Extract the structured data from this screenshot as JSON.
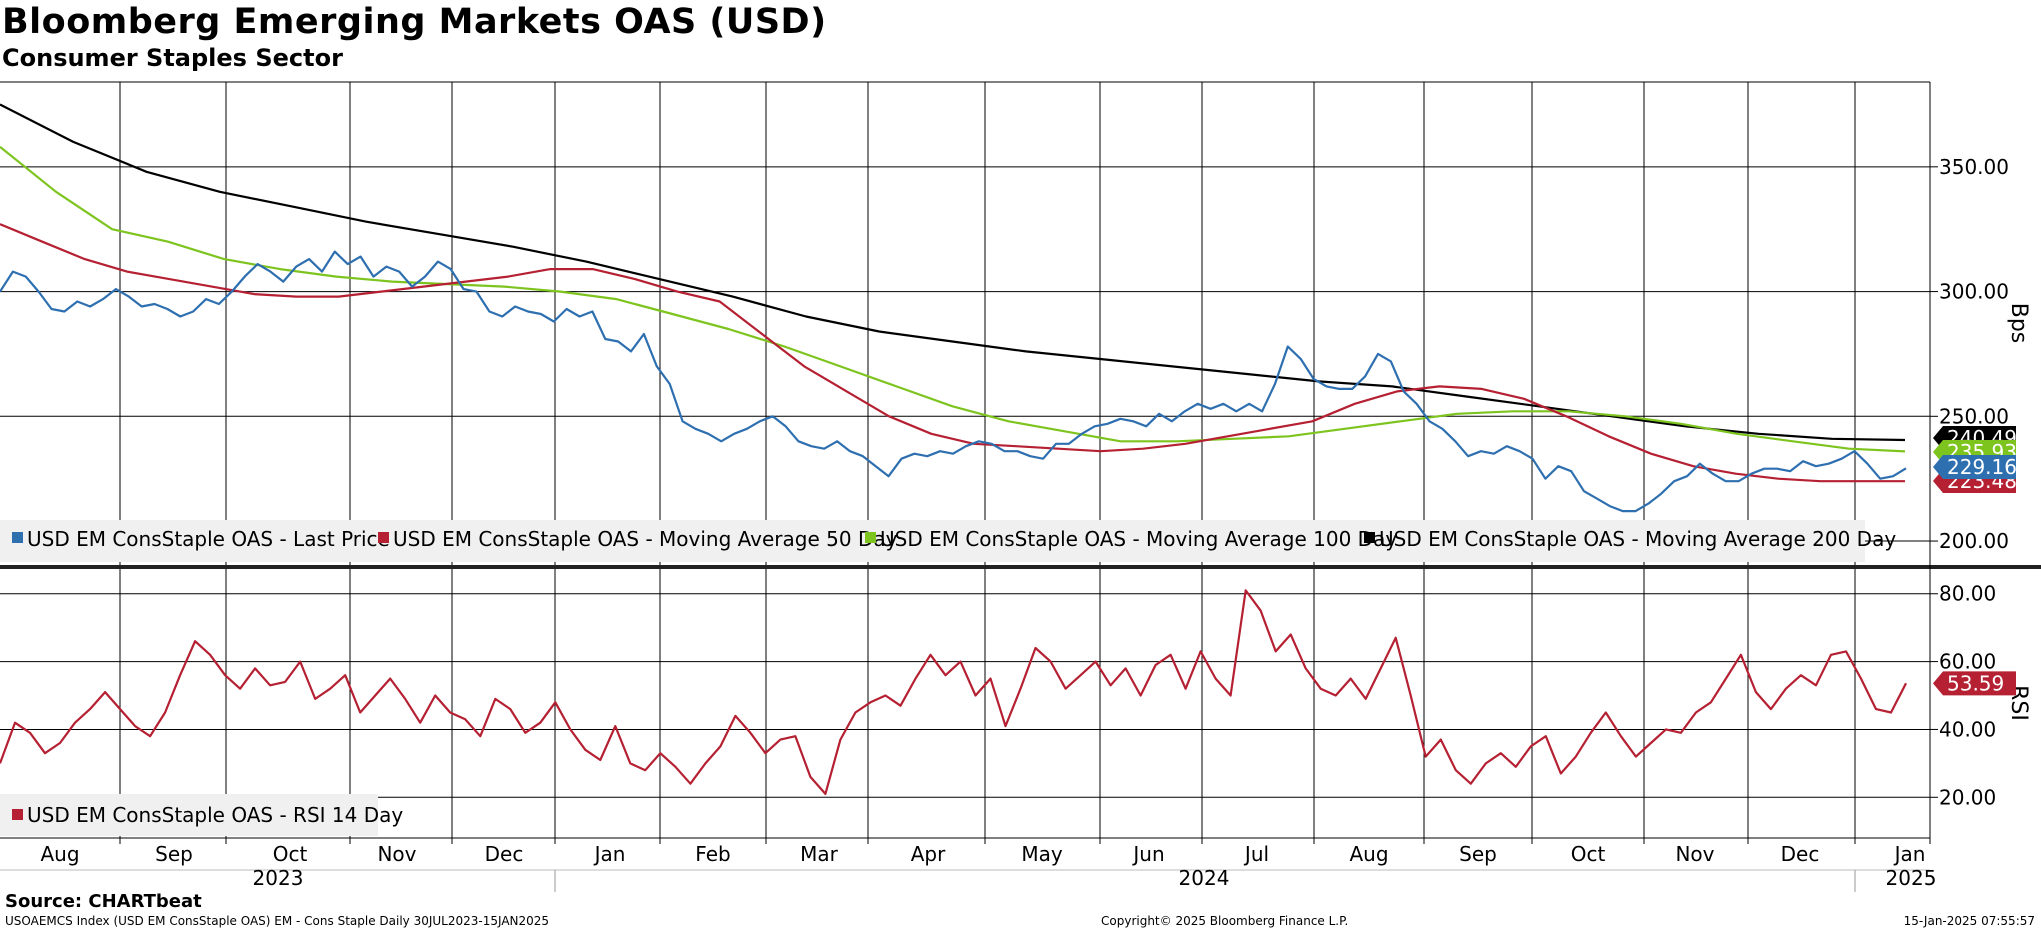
{
  "chart_data": {
    "type": "line",
    "title": "Bloomberg Emerging Markets OAS (USD)",
    "subtitle": "Consumer Staples Sector",
    "date_range": "30JUL2023-15JAN2025",
    "x_month_labels": [
      "Aug",
      "Sep",
      "Oct",
      "Nov",
      "Dec",
      "Jan",
      "Feb",
      "Mar",
      "Apr",
      "May",
      "Jun",
      "Jul",
      "Aug",
      "Sep",
      "Oct",
      "Nov",
      "Dec",
      "Jan"
    ],
    "x_year_labels": [
      "2023",
      "2024",
      "2025"
    ],
    "upper_panel": {
      "ylabel": "Bps",
      "ylim": [
        190,
        384
      ],
      "yticks": [
        "200.00",
        "250.00",
        "300.00",
        "350.00"
      ],
      "grid": true,
      "legend_position": "bottom-left",
      "series": [
        {
          "name": "USD EM ConsStaple OAS - Last Price",
          "color": "#2e6fb0",
          "last_label": "229.16",
          "values": [
            300,
            308,
            306,
            300,
            293,
            292,
            296,
            294,
            297,
            301,
            298,
            294,
            295,
            293,
            290,
            292,
            297,
            295,
            300,
            306,
            311,
            308,
            304,
            310,
            313,
            308,
            316,
            311,
            314,
            306,
            310,
            308,
            302,
            306,
            312,
            309,
            301,
            300,
            292,
            290,
            294,
            292,
            291,
            288,
            293,
            290,
            292,
            281,
            280,
            276,
            283,
            270,
            263,
            248,
            245,
            243,
            240,
            243,
            245,
            248,
            250,
            246,
            240,
            238,
            237,
            240,
            236,
            234,
            230,
            226,
            233,
            235,
            234,
            236,
            235,
            238,
            240,
            239,
            236,
            236,
            234,
            233,
            239,
            239,
            243,
            246,
            247,
            249,
            248,
            246,
            251,
            248,
            252,
            255,
            253,
            255,
            252,
            255,
            252,
            263,
            278,
            273,
            265,
            262,
            261,
            261,
            266,
            275,
            272,
            260,
            255,
            248,
            245,
            240,
            234,
            236,
            235,
            238,
            236,
            233,
            225,
            230,
            228,
            220,
            217,
            214,
            212,
            212,
            215,
            219,
            224,
            226,
            231,
            227,
            224,
            224,
            227,
            229,
            229,
            228,
            232,
            230,
            231,
            233,
            236,
            231,
            225,
            226,
            229.16
          ]
        },
        {
          "name": "USD EM ConsStaple OAS - Moving Average 50 Day",
          "color": "#b52032",
          "last_label": "223.48",
          "values": [
            327,
            320,
            313,
            308,
            305,
            302,
            299,
            298,
            298,
            300,
            302,
            304,
            306,
            309,
            309,
            305,
            300,
            296,
            283,
            270,
            260,
            250,
            243,
            239,
            238,
            237,
            236,
            237,
            239,
            242,
            245,
            248,
            255,
            260,
            262,
            261,
            257,
            250,
            242,
            235,
            230,
            227,
            225,
            224,
            224,
            224
          ]
        },
        {
          "name": "USD EM ConsStaple OAS - Moving Average 100 Day",
          "color": "#7dc41f",
          "last_label": "235.93",
          "values": [
            358,
            340,
            325,
            320,
            313,
            309,
            306,
            304,
            303,
            302,
            300,
            297,
            291,
            285,
            278,
            270,
            262,
            254,
            248,
            244,
            240,
            240,
            241,
            242,
            245,
            248,
            251,
            252,
            252,
            250,
            247,
            243,
            240,
            237,
            235.93
          ]
        },
        {
          "name": "USD EM ConsStaple OAS - Moving Average 200 Day",
          "color": "#000000",
          "last_label": "240.49",
          "values": [
            375,
            360,
            348,
            340,
            334,
            328,
            323,
            318,
            312,
            305,
            298,
            290,
            284,
            280,
            276,
            273,
            270,
            267,
            264,
            262,
            258,
            254,
            250,
            246,
            243,
            241,
            240.49
          ]
        }
      ]
    },
    "lower_panel": {
      "ylabel": "RSI",
      "ylim": [
        8,
        87
      ],
      "yticks": [
        "20.00",
        "40.00",
        "60.00",
        "80.00"
      ],
      "grid": true,
      "legend_position": "bottom-left",
      "series": [
        {
          "name": "USD EM ConsStaple OAS - RSI 14 Day",
          "color": "#b52032",
          "last_label": "53.59",
          "values": [
            30,
            42,
            39,
            33,
            36,
            42,
            46,
            51,
            46,
            41,
            38,
            45,
            56,
            66,
            62,
            56,
            52,
            58,
            53,
            54,
            60,
            49,
            52,
            56,
            45,
            50,
            55,
            49,
            42,
            50,
            45,
            43,
            38,
            49,
            46,
            39,
            42,
            48,
            40,
            34,
            31,
            41,
            30,
            28,
            33,
            29,
            24,
            30,
            35,
            44,
            39,
            33,
            37,
            38,
            26,
            21,
            37,
            45,
            48,
            50,
            47,
            55,
            62,
            56,
            60,
            50,
            55,
            41,
            52,
            64,
            60,
            52,
            56,
            60,
            53,
            58,
            50,
            59,
            62,
            52,
            63,
            55,
            50,
            81,
            75,
            63,
            68,
            58,
            52,
            50,
            55,
            49,
            58,
            67,
            50,
            32,
            37,
            28,
            24,
            30,
            33,
            29,
            35,
            38,
            27,
            32,
            39,
            45,
            38,
            32,
            36,
            40,
            39,
            45,
            48,
            55,
            62,
            51,
            46,
            52,
            56,
            53,
            62,
            63,
            55,
            46,
            45,
            53.59
          ]
        }
      ]
    }
  },
  "source": "Source: CHARTbeat",
  "footer_left": "USOAEMCS Index (USD EM ConsStaple OAS) EM - Cons Staple  Daily 30JUL2023-15JAN2025",
  "footer_mid": "Copyright© 2025 Bloomberg Finance L.P.",
  "footer_right": "15-Jan-2025 07:55:57"
}
